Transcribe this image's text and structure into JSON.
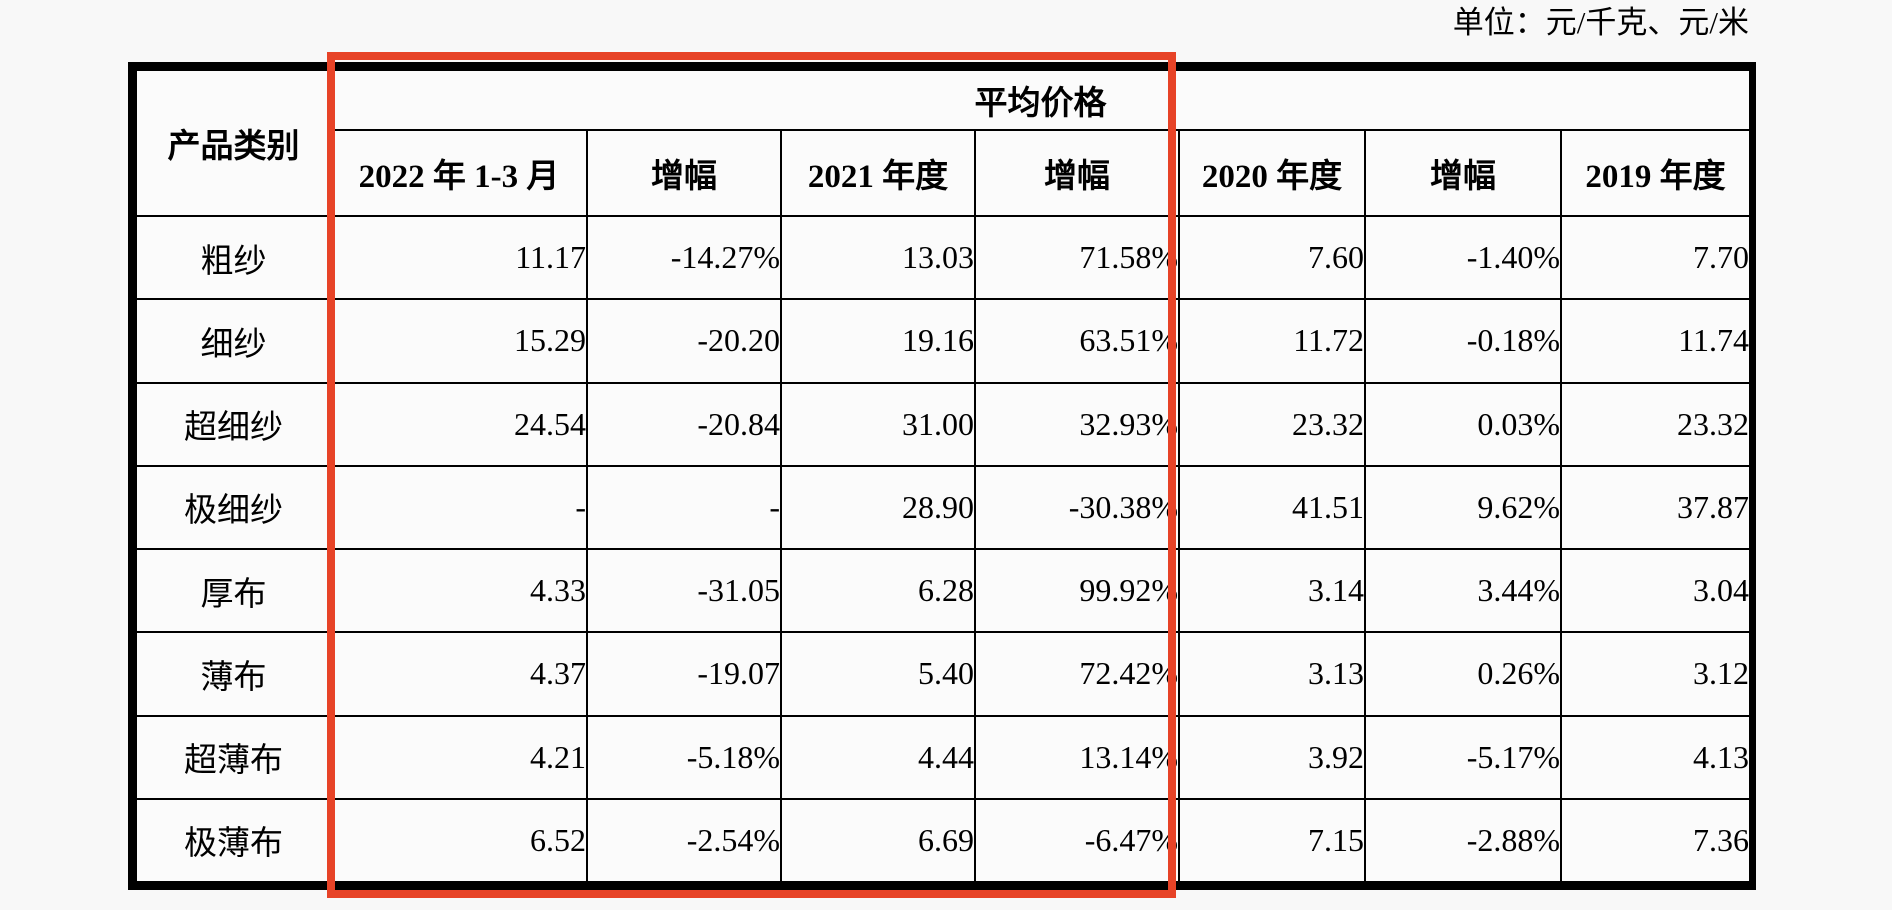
{
  "page": {
    "unit_label": "单位：元/千克、元/米"
  },
  "table": {
    "corner_header": "产品类别",
    "group_header": "平均价格",
    "column_headers": [
      "2022 年 1-3 月",
      "增幅",
      "2021 年度",
      "增幅",
      "2020 年度",
      "增幅",
      "2019 年度"
    ],
    "rows": [
      {
        "category": "粗纱",
        "values": [
          "11.17",
          "-14.27%",
          "13.03",
          "71.58%",
          "7.60",
          "-1.40%",
          "7.70"
        ]
      },
      {
        "category": "细纱",
        "values": [
          "15.29",
          "-20.20",
          "19.16",
          "63.51%",
          "11.72",
          "-0.18%",
          "11.74"
        ]
      },
      {
        "category": "超细纱",
        "values": [
          "24.54",
          "-20.84",
          "31.00",
          "32.93%",
          "23.32",
          "0.03%",
          "23.32"
        ]
      },
      {
        "category": "极细纱",
        "values": [
          "-",
          "-",
          "28.90",
          "-30.38%",
          "41.51",
          "9.62%",
          "37.87"
        ]
      },
      {
        "category": "厚布",
        "values": [
          "4.33",
          "-31.05",
          "6.28",
          "99.92%",
          "3.14",
          "3.44%",
          "3.04"
        ]
      },
      {
        "category": "薄布",
        "values": [
          "4.37",
          "-19.07",
          "5.40",
          "72.42%",
          "3.13",
          "0.26%",
          "3.12"
        ]
      },
      {
        "category": "超薄布",
        "values": [
          "4.21",
          "-5.18%",
          "4.44",
          "13.14%",
          "3.92",
          "-5.17%",
          "4.13"
        ]
      },
      {
        "category": "极薄布",
        "values": [
          "6.52",
          "-2.54%",
          "6.69",
          "-6.47%",
          "7.15",
          "-2.88%",
          "7.36"
        ]
      }
    ]
  },
  "annotation": {
    "highlight_box_color": "#e74327"
  },
  "colors": {
    "page_background": "#f8f8f8",
    "table_background": "#fbfbfb",
    "border": "#000000",
    "text": "#000000"
  }
}
